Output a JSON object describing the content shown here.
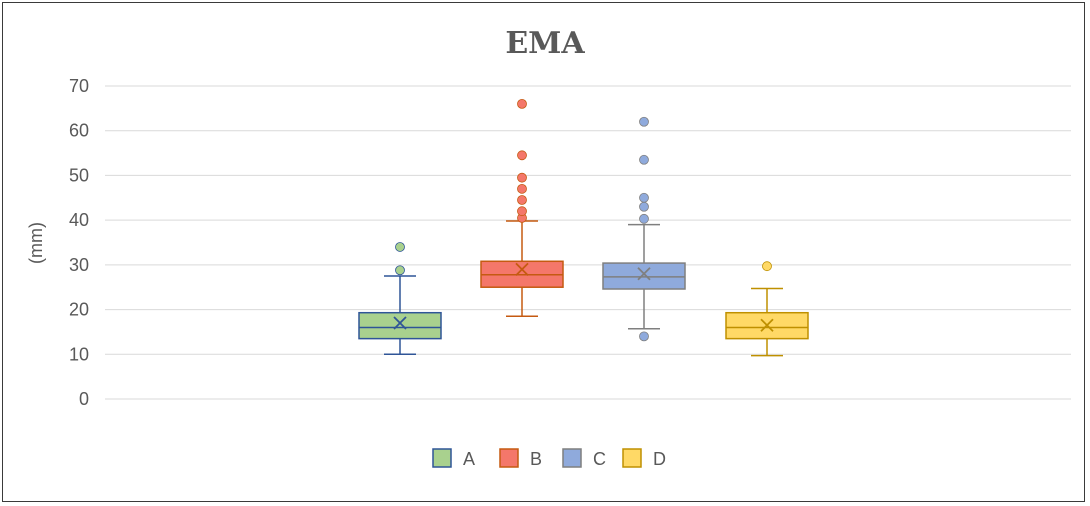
{
  "chart_data": {
    "type": "box",
    "title": "EMA",
    "xlabel": "",
    "ylabel": "(mm)",
    "ylim": [
      0,
      70
    ],
    "yticks": [
      0,
      10,
      20,
      30,
      40,
      50,
      60,
      70
    ],
    "grid": true,
    "legend_position": "bottom",
    "series": [
      {
        "name": "A",
        "fill": "#A9D18E",
        "stroke": "#2F5597",
        "min": 10,
        "q1": 13.5,
        "median": 16,
        "q3": 19.3,
        "max": 27.5,
        "mean": 17,
        "outliers": [
          28.8,
          34
        ]
      },
      {
        "name": "B",
        "fill": "#F4776A",
        "stroke": "#C55A11",
        "min": 18.5,
        "q1": 25,
        "median": 27.8,
        "q3": 30.8,
        "max": 39.8,
        "mean": 29,
        "outliers": [
          40.5,
          42,
          44.5,
          47,
          49.5,
          54.5,
          66
        ]
      },
      {
        "name": "C",
        "fill": "#8FAADC",
        "stroke": "#7F7F7F",
        "min": 15.7,
        "q1": 24.6,
        "median": 27.3,
        "q3": 30.4,
        "max": 39,
        "mean": 28,
        "outliers": [
          14,
          40.3,
          43,
          45,
          53.5,
          62
        ]
      },
      {
        "name": "D",
        "fill": "#FFD966",
        "stroke": "#BF9000",
        "min": 9.7,
        "q1": 13.5,
        "median": 16,
        "q3": 19.3,
        "max": 24.7,
        "mean": 16.5,
        "outliers": [
          29.7
        ]
      }
    ]
  }
}
